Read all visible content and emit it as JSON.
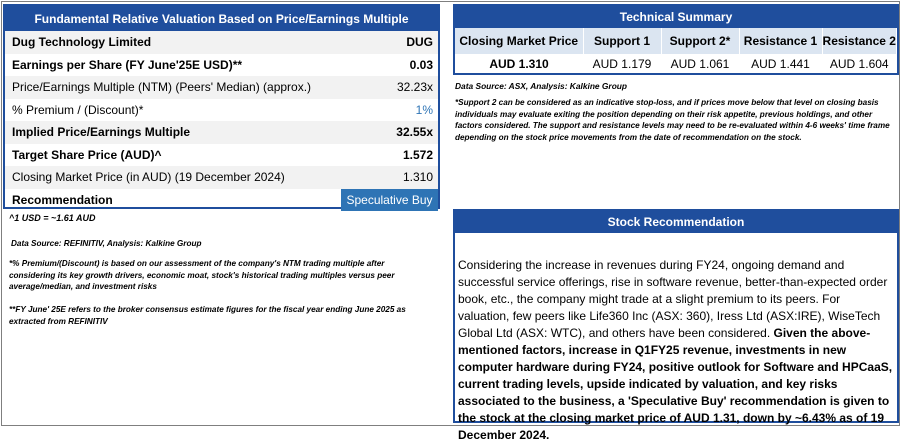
{
  "valuation": {
    "title": "Fundamental Relative Valuation Based on Price/Earnings Multiple",
    "rows": [
      {
        "label": "Dug Technology Limited",
        "value": "DUG"
      },
      {
        "label": "Earnings per Share (FY June'25E USD)**",
        "value": "0.03"
      },
      {
        "label": "Price/Earnings Multiple (NTM)  (Peers' Median) (approx.)",
        "value": "32.23x"
      },
      {
        "label": "% Premium / (Discount)*",
        "value": "1%"
      },
      {
        "label": "Implied Price/Earnings Multiple",
        "value": "32.55x"
      },
      {
        "label": "Target Share Price (AUD)^",
        "value": "1.572"
      },
      {
        "label": "Closing Market Price (in AUD) (19 December 2024)",
        "value": "1.310"
      },
      {
        "label": "Recommendation",
        "value": "Speculative Buy"
      }
    ],
    "notes": {
      "fx": "^1 USD = ~1.61 AUD",
      "source": "Data Source: REFINITIV, Analysis: Kalkine Group",
      "premium": "*% Premium/(Discount) is based on our assessment of the company's NTM trading multiple after considering its key growth drivers, economic moat, stock's historical trading multiples versus peer average/median, and investment risks",
      "fy": "**FY June' 25E refers to the broker consensus estimate figures for the fiscal year ending June 2025  as extracted from REFINITIV"
    }
  },
  "technical": {
    "title": "Technical Summary",
    "headers": [
      "Closing Market Price",
      "Support 1",
      "Support 2*",
      "Resistance 1",
      "Resistance 2"
    ],
    "values": [
      "AUD 1.310",
      "AUD 1.179",
      "AUD 1.061",
      "AUD 1.441",
      "AUD 1.604"
    ],
    "source": "Data Source: ASX, Analysis: Kalkine Group",
    "note": "*Support 2 can be considered as an indicative stop-loss, and if prices move below that level on closing basis individuals may evaluate exiting the position depending on their risk appetite, previous holdings, and other factors considered. The support and resistance levels may need to be re-evaluated within 4-6 weeks' time frame depending on the stock price movements from the date of recommendation on the stock."
  },
  "recommendation": {
    "title": "Stock Recommendation",
    "text_plain": "Considering the increase in revenues during FY24, ongoing demand and successful service offerings, rise in software revenue, better-than-expected order book, etc., the company might trade at a slight premium to its peers. For valuation, few peers like Life360 Inc (ASX: 360), Iress Ltd (ASX:IRE), WiseTech Global Ltd (ASX: WTC), and others have been considered. ",
    "text_bold": "Given the above-mentioned factors, increase in Q1FY25 revenue, investments in new computer hardware during FY24, positive outlook for Software and HPCaaS, current trading levels, upside indicated by valuation, and key risks associated to the business, a 'Speculative Buy' recommendation is given to the stock at the closing market price of AUD 1.31, down by ~6.43% as of 19 December 2024."
  }
}
